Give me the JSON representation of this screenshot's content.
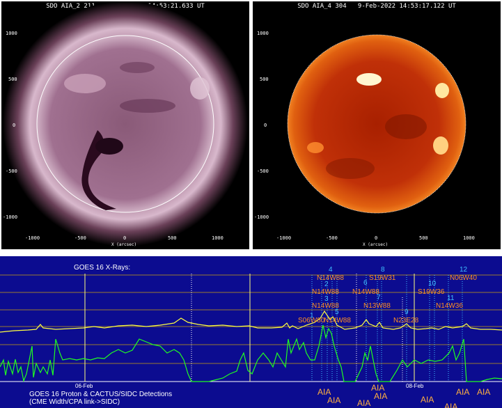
{
  "panels": [
    {
      "title": "SDO AIA_2 211   9-Feb-2022 14:53:21.633 UT",
      "y_ticks": [
        "1000",
        "500",
        "0",
        "-500",
        "-1000"
      ],
      "x_ticks": [
        "-1000",
        "-500",
        "0",
        "500",
        "1000"
      ],
      "x_axis_label": "X (arcsec)"
    },
    {
      "title": "SDO AIA_4 304   9-Feb-2022 14:53:17.122 UT",
      "y_ticks": [
        "1000",
        "500",
        "0",
        "-500",
        "-1000"
      ],
      "x_ticks": [
        "-1000",
        "-500",
        "0",
        "500",
        "1000"
      ],
      "x_axis_label": "X (arcsec)"
    }
  ],
  "goes": {
    "xray_title": "GOES 16 X-Rays:",
    "proton_title": "GOES 16 Proton & CACTUS/SIDC Detections",
    "proton_subtitle": "(CME Width/CPA link->SIDC)",
    "date_labels": [
      "06-Feb",
      "08-Feb"
    ],
    "cme_numbers": [
      "4",
      "2",
      "3",
      "5",
      "1",
      "6",
      "7",
      "8",
      "9",
      "10",
      "11",
      "12"
    ],
    "regions": [
      "N14W88",
      "N14W88",
      "N14W88",
      "S06W80",
      "N14W88",
      "S19W31",
      "N14W88",
      "N13W88",
      "N23E28",
      "S19W36",
      "N14W36",
      "N06W40"
    ],
    "aia_labels": [
      "AIA",
      "AIA",
      "AIA",
      "AIA",
      "AIA",
      "AIA",
      "AIA",
      "AIA",
      "AIA"
    ],
    "colors": {
      "background": "#0c0c90",
      "xray_curve": "#ffff40",
      "proton_curve": "#20ff20",
      "cme_number": "#40c0ff",
      "region": "#ff9020",
      "aia": "#ffb040"
    }
  }
}
